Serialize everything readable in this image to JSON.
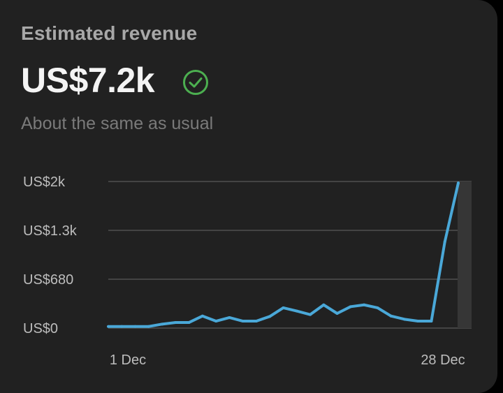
{
  "card": {
    "title": "Estimated revenue",
    "amount": "US$7.2k",
    "status_icon": "check-circle-icon",
    "status_color": "#4caf50",
    "subtitle": "About the same as usual"
  },
  "chart_data": {
    "type": "line",
    "title": "",
    "xlabel": "",
    "ylabel": "",
    "x_tick_labels": [
      "1 Dec",
      "28 Dec"
    ],
    "y_tick_labels": [
      "US$0",
      "US$680",
      "US$1.3k",
      "US$2k"
    ],
    "ylim": [
      0,
      2040
    ],
    "grid": true,
    "line_color": "#4aa8d8",
    "highlighted_last_point": true,
    "values": [
      22,
      22,
      22,
      22,
      55,
      78,
      78,
      168,
      97,
      146,
      97,
      97,
      162,
      282,
      237,
      188,
      323,
      204,
      298,
      323,
      282,
      168,
      123,
      97,
      97,
      1200,
      2020
    ]
  }
}
